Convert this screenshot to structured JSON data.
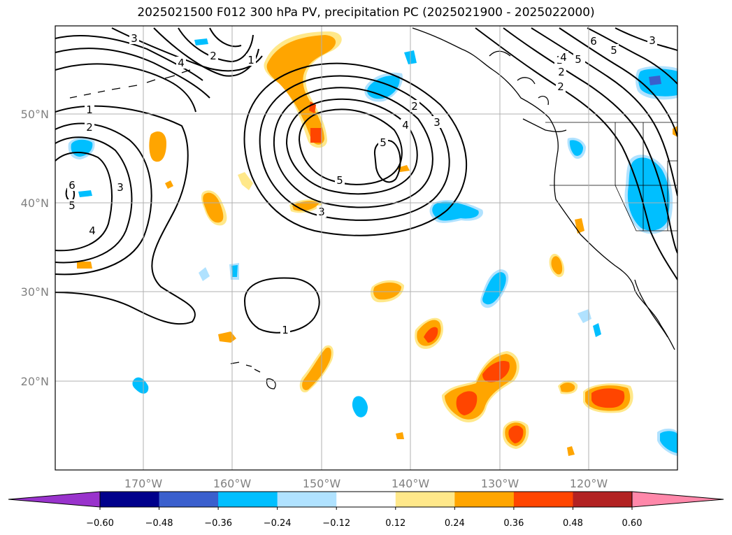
{
  "title": "2025021500 F012 300 hPa PV, precipitation PC (2025021900 - 2025022000)",
  "map": {
    "lat_labels": [
      "50°N",
      "40°N",
      "30°N",
      "20°N"
    ],
    "lon_labels": [
      "170°W",
      "160°W",
      "150°W",
      "140°W",
      "130°W",
      "120°W"
    ]
  },
  "pv_contour_labels": [
    "1",
    "2",
    "3",
    "4",
    "5",
    "6",
    "1",
    "2",
    "3",
    "4",
    "5",
    "5",
    "4",
    "3",
    "2",
    "1",
    "3",
    "1",
    "2",
    "4",
    "5",
    "3",
    "4",
    "5",
    "6",
    "2",
    "4",
    "1",
    "3",
    "4",
    "5",
    "1",
    "2"
  ],
  "colorbar": {
    "tick_labels": [
      "−0.60",
      "−0.48",
      "−0.36",
      "−0.24",
      "−0.12",
      "0.12",
      "0.24",
      "0.36",
      "0.48",
      "0.60"
    ],
    "colors": [
      "#9933cc",
      "#00008b",
      "#3a5fcd",
      "#00bfff",
      "#b0e2ff",
      "#ffffff",
      "#ffe88a",
      "#ffa500",
      "#ff4500",
      "#b22222",
      "#ff88aa"
    ]
  }
}
